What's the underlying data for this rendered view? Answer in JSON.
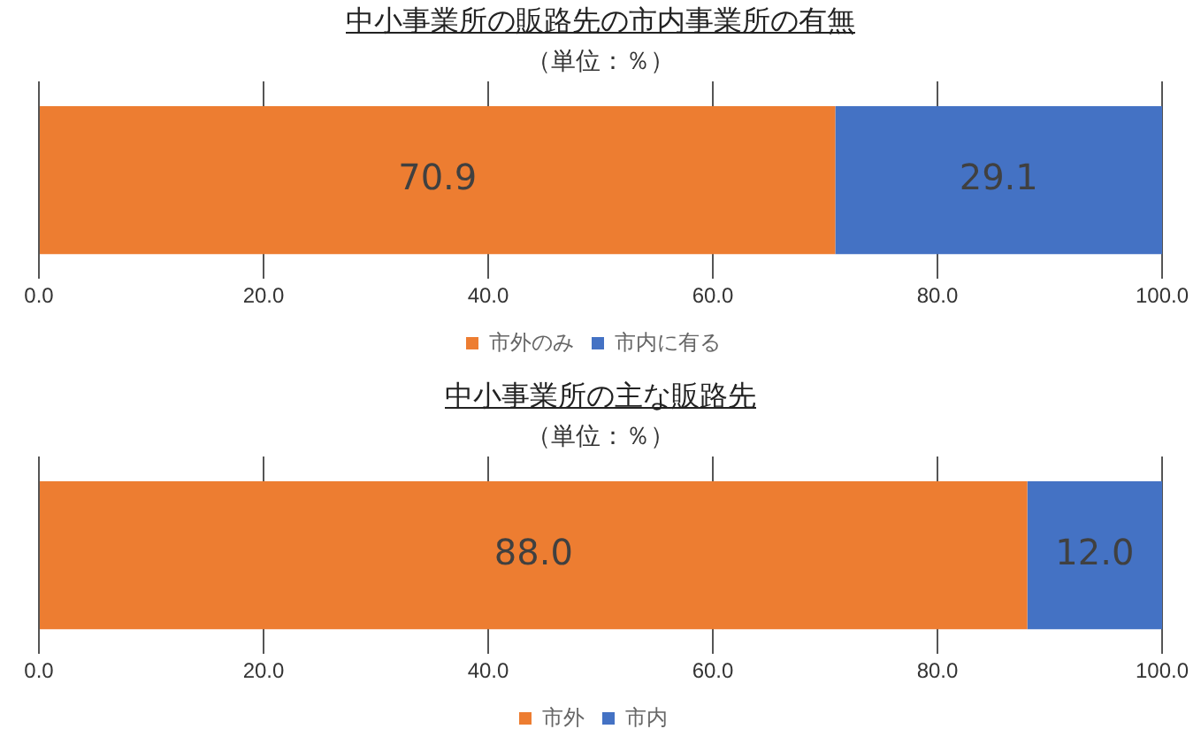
{
  "chart_data": [
    {
      "type": "bar",
      "title": "中小事業所の販路先の市内事業所の有無",
      "subtitle": "（単位：％）",
      "orientation": "horizontal",
      "stacked": true,
      "categories": [
        null
      ],
      "series": [
        {
          "name": "市外のみ",
          "color": "#ed7d31",
          "values": [
            70.9
          ],
          "value_labels": [
            "70.9"
          ]
        },
        {
          "name": "市内に有る",
          "color": "#4472c4",
          "values": [
            29.1
          ],
          "value_labels": [
            "29.1"
          ]
        }
      ],
      "xlim": [
        0,
        100
      ],
      "xticks": [
        {
          "value": 0,
          "label": "0.0"
        },
        {
          "value": 20,
          "label": "20.0"
        },
        {
          "value": 40,
          "label": "40.0"
        },
        {
          "value": 60,
          "label": "60.0"
        },
        {
          "value": 80,
          "label": "80.0"
        },
        {
          "value": 100,
          "label": "100.0"
        }
      ],
      "grid": "x",
      "legend": "bottom"
    },
    {
      "type": "bar",
      "title": "中小事業所の主な販路先",
      "subtitle": "（単位：％）",
      "orientation": "horizontal",
      "stacked": true,
      "categories": [
        null
      ],
      "series": [
        {
          "name": "市外",
          "color": "#ed7d31",
          "values": [
            88.0
          ],
          "value_labels": [
            "88.0"
          ]
        },
        {
          "name": "市内",
          "color": "#4472c4",
          "values": [
            12.0
          ],
          "value_labels": [
            "12.0"
          ]
        }
      ],
      "xlim": [
        0,
        100
      ],
      "xticks": [
        {
          "value": 0,
          "label": "0.0"
        },
        {
          "value": 20,
          "label": "20.0"
        },
        {
          "value": 40,
          "label": "40.0"
        },
        {
          "value": 60,
          "label": "60.0"
        },
        {
          "value": 80,
          "label": "80.0"
        },
        {
          "value": 100,
          "label": "100.0"
        }
      ],
      "grid": "x",
      "legend": "bottom"
    }
  ]
}
